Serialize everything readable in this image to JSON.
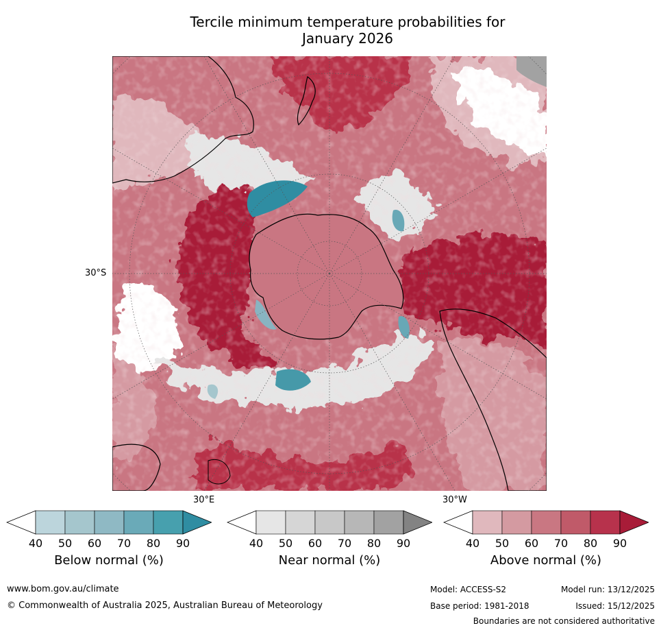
{
  "title": {
    "line1": "Tercile minimum temperature probabilities for",
    "line2": "January 2026"
  },
  "map": {
    "projection": "south polar stereographic",
    "labels": {
      "lat_30s": "30°S",
      "lon_30e": "30°E",
      "lon_30w": "30°W"
    },
    "dominant_category": "Above normal",
    "colors": {
      "above": [
        "#e0b8bd",
        "#d59aa2",
        "#c97682",
        "#c15768",
        "#b8304a",
        "#a81c38"
      ],
      "below": [
        "#bcd5dc",
        "#a5c6cd",
        "#88b4c1",
        "#68a8b6",
        "#4699a9",
        "#2f8da2"
      ],
      "near": [
        "#e6e6e6",
        "#d6d6d6",
        "#c6c6c6",
        "#b6b6b6",
        "#a2a2a2",
        "#808080"
      ]
    }
  },
  "legend": {
    "ticks": [
      "40",
      "50",
      "60",
      "70",
      "80",
      "90"
    ],
    "below": {
      "label": "Below normal (%)",
      "colors": [
        "#bcd5dc",
        "#a5c6cd",
        "#8fb9c4",
        "#6aaab8",
        "#47a0ae",
        "#2f8da2"
      ]
    },
    "near": {
      "label": "Near normal (%)",
      "colors": [
        "#e6e6e6",
        "#d6d6d6",
        "#c8c8c8",
        "#b7b7b7",
        "#a2a2a2",
        "#838383"
      ]
    },
    "above": {
      "label": "Above normal (%)",
      "colors": [
        "#e0b8bd",
        "#d49aa1",
        "#c97782",
        "#c05a69",
        "#b7324c",
        "#a81c38"
      ]
    }
  },
  "footer": {
    "website": "www.bom.gov.au/climate",
    "copyright": "© Commonwealth of Australia 2025, Australian Bureau of Meteorology",
    "model": "Model: ACCESS-S2",
    "model_run": "Model run: 13/12/2025",
    "base_period": "Base period: 1981-2018",
    "issued": "Issued: 15/12/2025",
    "disclaimer": "Boundaries are not considered authoritative"
  }
}
